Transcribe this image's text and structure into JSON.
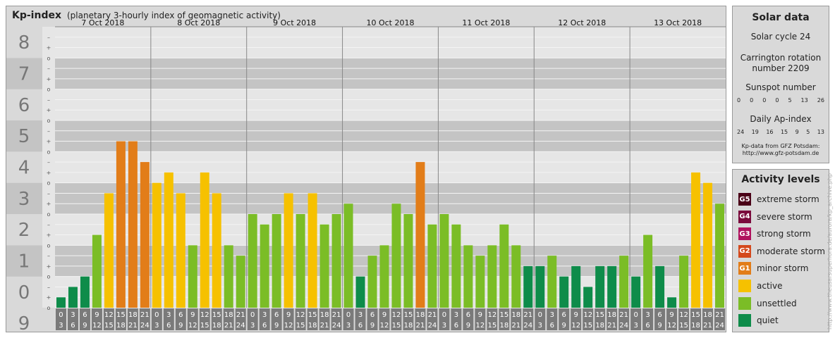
{
  "header": {
    "title": "Kp-index",
    "subtitle": "(planetary 3-hourly index of geomagnetic activity)"
  },
  "chart_data": {
    "type": "bar",
    "title": "Kp-index",
    "subtitle": "(planetary 3-hourly index of geomagnetic activity)",
    "ylim": [
      0,
      9
    ],
    "y_ticks": [
      "0",
      "1",
      "2",
      "3",
      "4",
      "5",
      "6",
      "7",
      "8",
      "9"
    ],
    "minor_ticks": [
      "o",
      "+",
      "–"
    ],
    "days": [
      "7 Oct 2018",
      "8 Oct 2018",
      "9 Oct 2018",
      "10 Oct 2018",
      "11 Oct 2018",
      "12 Oct 2018",
      "13 Oct 2018"
    ],
    "interval_start": [
      "0",
      "3",
      "6",
      "9",
      "12",
      "15",
      "18",
      "21"
    ],
    "interval_end": [
      "3",
      "6",
      "9",
      "12",
      "15",
      "18",
      "21",
      "24"
    ],
    "values": [
      0.333,
      0.667,
      1.0,
      2.333,
      3.667,
      5.333,
      5.333,
      4.667,
      4.0,
      4.333,
      3.667,
      2.0,
      4.333,
      3.667,
      2.0,
      1.667,
      3.0,
      2.667,
      3.0,
      3.667,
      3.0,
      3.667,
      2.667,
      3.0,
      3.333,
      1.0,
      1.667,
      2.0,
      3.333,
      3.0,
      4.667,
      2.667,
      3.0,
      2.667,
      2.0,
      1.667,
      2.0,
      2.667,
      2.0,
      1.333,
      1.333,
      1.667,
      1.0,
      1.333,
      0.667,
      1.333,
      1.333,
      1.667,
      1.0,
      2.333,
      1.333,
      0.333,
      1.667,
      4.333,
      4.0,
      3.333
    ],
    "grid": true
  },
  "solar": {
    "title": "Solar data",
    "solar_cycle": "Solar cycle 24",
    "carrington_line1": "Carrington rotation",
    "carrington_line2": "number 2209",
    "sunspot_title": "Sunspot number",
    "sunspot_values": [
      "0",
      "0",
      "0",
      "0",
      "5",
      "13",
      "26"
    ],
    "ap_title": "Daily Ap-index",
    "ap_values": [
      "24",
      "19",
      "16",
      "15",
      "9",
      "5",
      "13"
    ],
    "footnote1": "Kp-data from GFZ Potsdam:",
    "footnote2": "http://www.gfz-potsdam.de"
  },
  "activity": {
    "title": "Activity levels",
    "levels": [
      {
        "code": "G5",
        "label": "extreme storm",
        "color": "#4a0017"
      },
      {
        "code": "G4",
        "label": "severe storm",
        "color": "#7a0a3c"
      },
      {
        "code": "G3",
        "label": "strong storm",
        "color": "#b0125e"
      },
      {
        "code": "G2",
        "label": "moderate storm",
        "color": "#d4491c"
      },
      {
        "code": "G1",
        "label": "minor storm",
        "color": "#e27d19"
      },
      {
        "code": "",
        "label": "active",
        "color": "#f6c100"
      },
      {
        "code": "",
        "label": "unsettled",
        "color": "#7bbd26"
      },
      {
        "code": "",
        "label": "quiet",
        "color": "#0e8c4a"
      }
    ]
  },
  "watermark": "http://www.theusarsuperhora.de/aurora/kp_archive.php"
}
